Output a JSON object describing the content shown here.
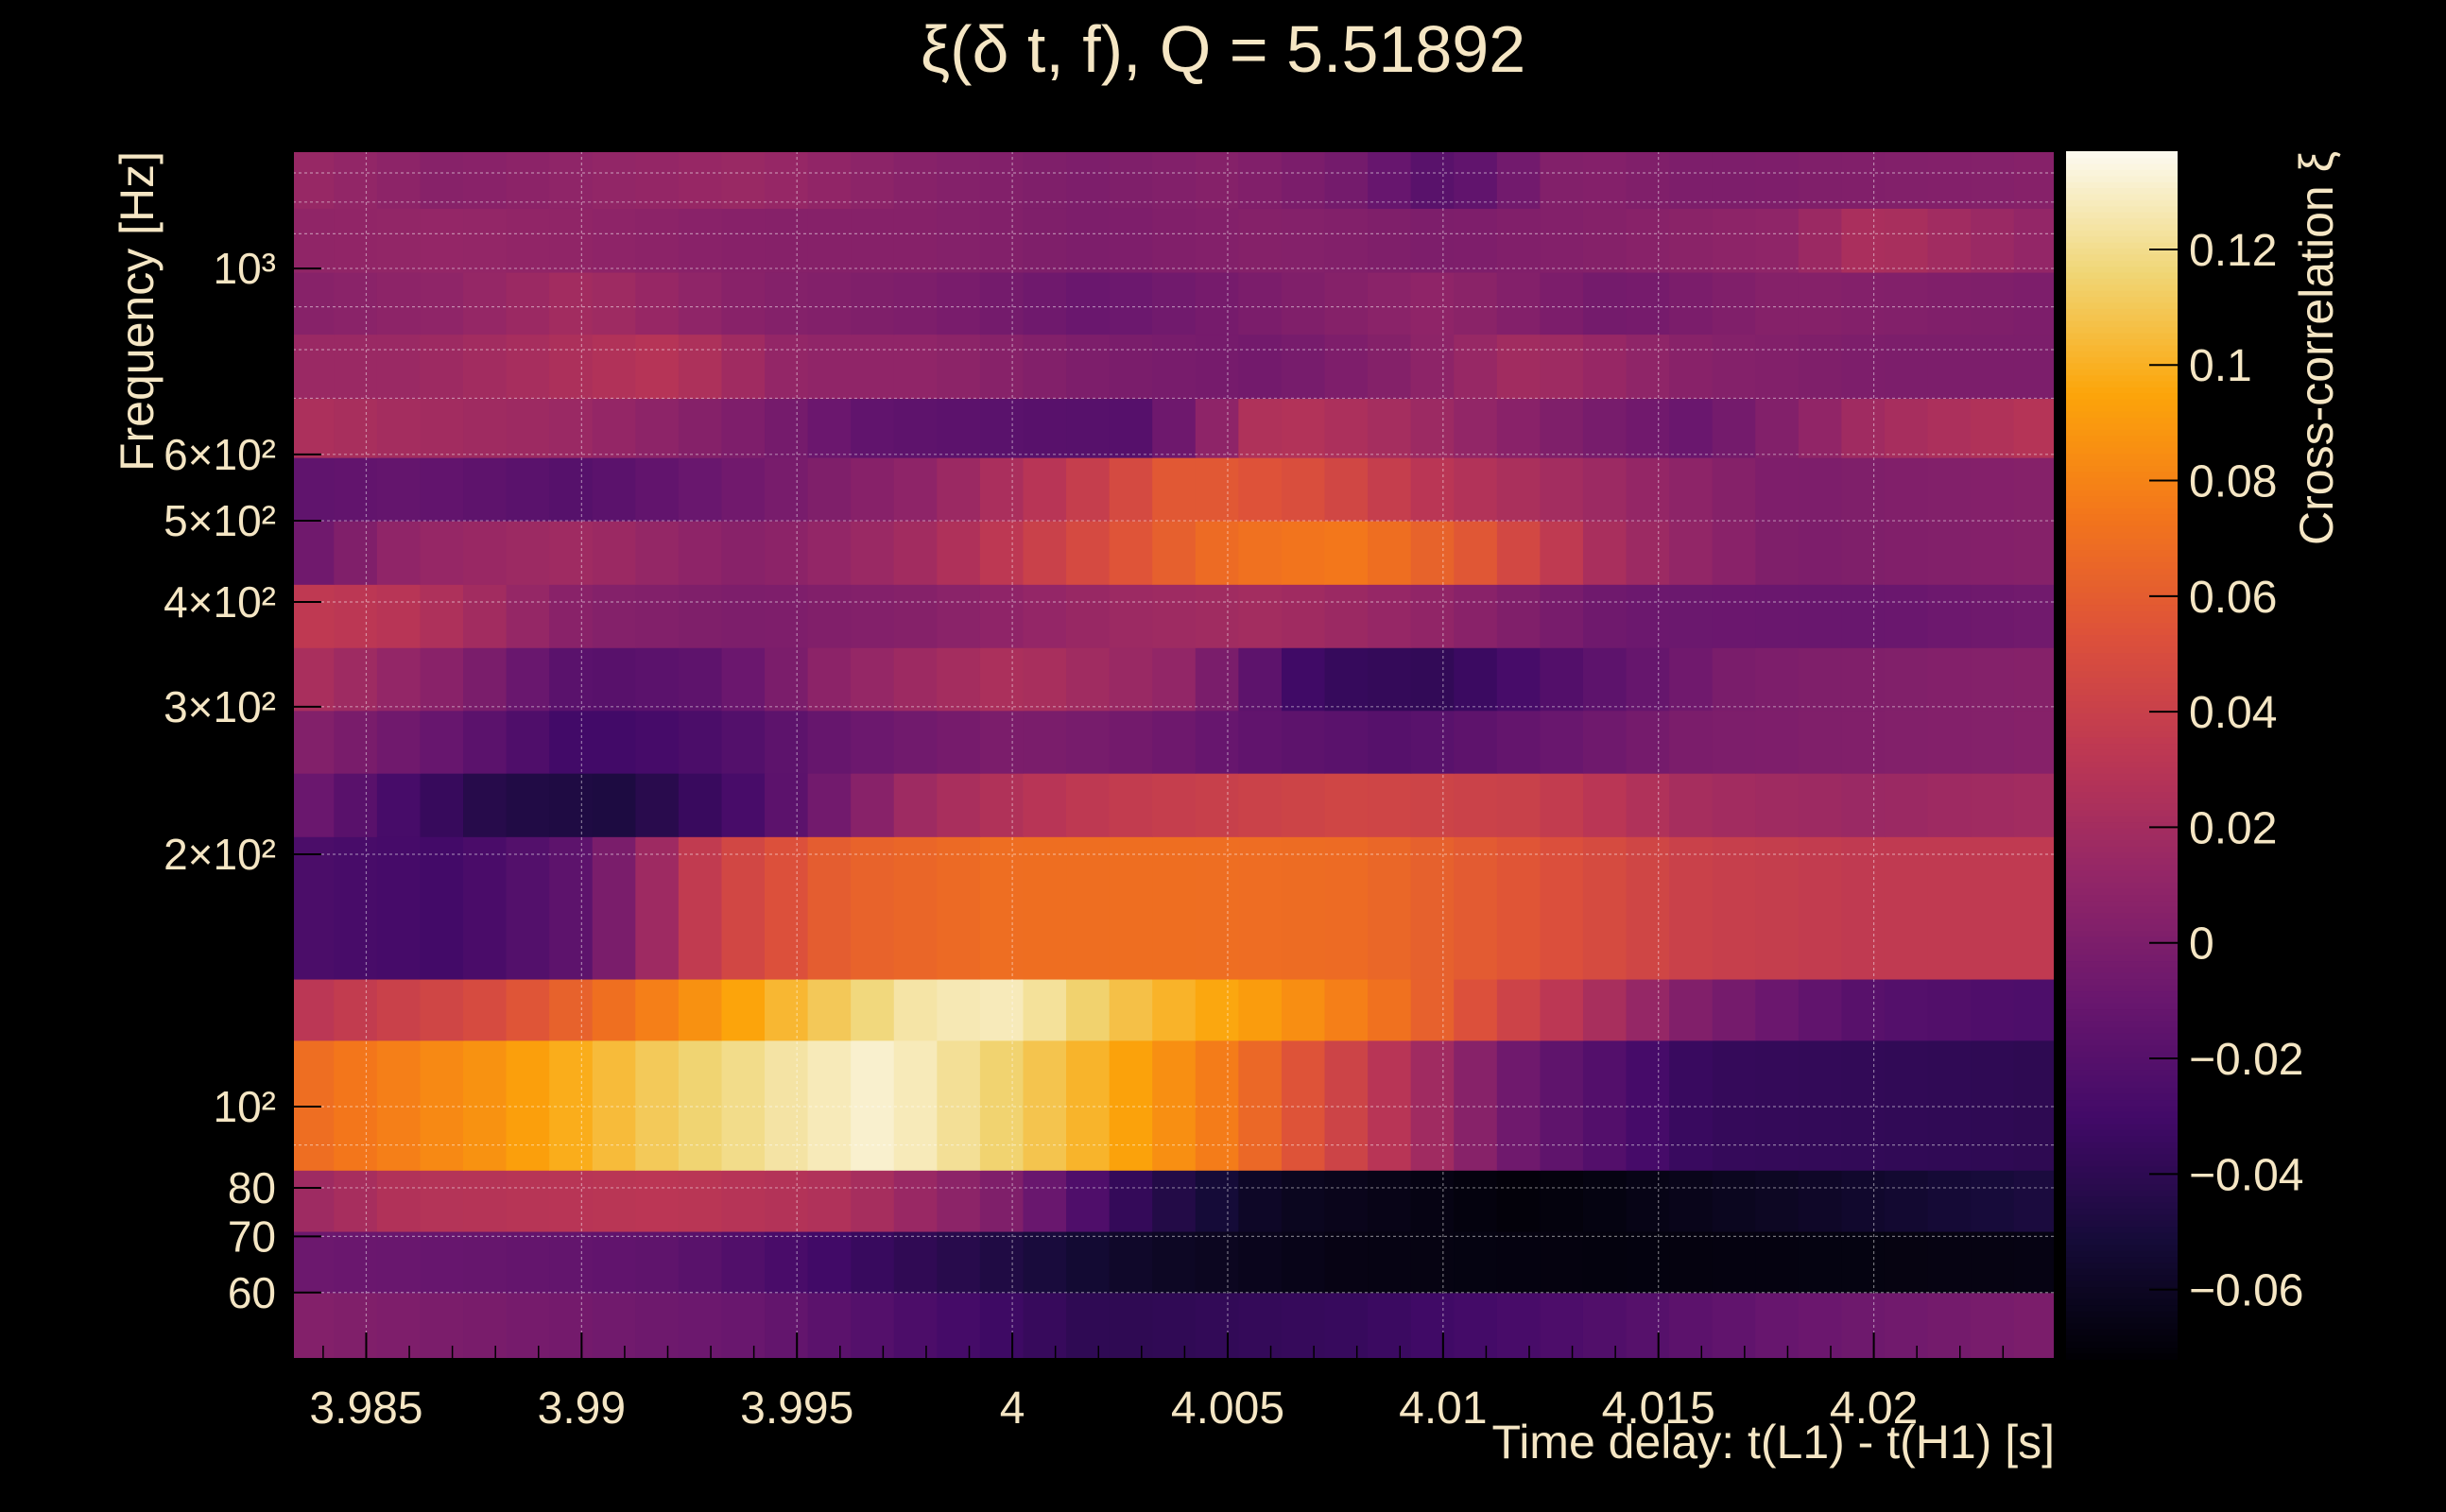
{
  "chart_data": {
    "type": "heatmap",
    "title": "ξ(δ t, f), Q = 5.51892",
    "xlabel": "Time delay: t(L1) - t(H1) [s]",
    "ylabel": "Frequency [Hz]",
    "zlabel": "Cross-correlation ξ",
    "xlim": [
      3.9833,
      4.0242
    ],
    "ylim": [
      50,
      1380
    ],
    "zlim": [
      -0.072,
      0.137
    ],
    "log_y": true,
    "grid": true,
    "colormap": "inferno",
    "x_ticks": [
      3.985,
      3.99,
      3.995,
      4.0,
      4.005,
      4.01,
      4.015,
      4.02
    ],
    "x_tick_labels": [
      "3.985",
      "3.99",
      "3.995",
      "4",
      "4.005",
      "4.01",
      "4.015",
      "4.02"
    ],
    "y_ticks": [
      60,
      70,
      80,
      100,
      200,
      300,
      400,
      500,
      600,
      1000
    ],
    "y_tick_labels": [
      "60",
      "70",
      "80",
      "10²",
      "2×10²",
      "3×10²",
      "4×10²",
      "5×10²",
      "6×10²",
      "10³"
    ],
    "z_ticks": [
      -0.06,
      -0.04,
      -0.02,
      0,
      0.02,
      0.04,
      0.06,
      0.08,
      0.1,
      0.12
    ],
    "z_tick_labels": [
      "−0.06",
      "−0.04",
      "−0.02",
      "0",
      "0.02",
      "0.04",
      "0.06",
      "0.08",
      "0.1",
      "0.12"
    ],
    "x_centers": [
      3.98375,
      3.98475,
      3.98575,
      3.98675,
      3.98775,
      3.98875,
      3.98975,
      3.99075,
      3.99175,
      3.99275,
      3.99375,
      3.99475,
      3.99575,
      3.99675,
      3.99775,
      3.99875,
      3.99975,
      4.00075,
      4.00175,
      4.00275,
      4.00375,
      4.00475,
      4.00575,
      4.00675,
      4.00775,
      4.00875,
      4.00975,
      4.01075,
      4.01175,
      4.01275,
      4.01375,
      4.01475,
      4.01575,
      4.01675,
      4.01775,
      4.01875,
      4.01975,
      4.02075,
      4.02175,
      4.02275,
      4.02375
    ],
    "y_bands": [
      [
        50,
        60
      ],
      [
        60,
        71
      ],
      [
        71,
        84
      ],
      [
        84,
        120
      ],
      [
        120,
        142
      ],
      [
        142,
        210
      ],
      [
        210,
        250
      ],
      [
        250,
        297
      ],
      [
        297,
        353
      ],
      [
        353,
        420
      ],
      [
        420,
        500
      ],
      [
        500,
        595
      ],
      [
        595,
        700
      ],
      [
        700,
        835
      ],
      [
        835,
        990
      ],
      [
        990,
        1180
      ],
      [
        1180,
        1380
      ]
    ],
    "band_values": [
      {
        "pts": [
          [
            3.9833,
            0.004
          ],
          [
            3.994,
            -0.01
          ],
          [
            3.998,
            -0.026
          ],
          [
            4.002,
            -0.04
          ],
          [
            4.008,
            -0.035
          ],
          [
            4.014,
            -0.022
          ],
          [
            4.018,
            -0.01
          ],
          [
            4.0242,
            0.0
          ]
        ]
      },
      {
        "pts": [
          [
            3.9833,
            -0.008
          ],
          [
            3.992,
            -0.015
          ],
          [
            3.998,
            -0.04
          ],
          [
            4.003,
            -0.058
          ],
          [
            4.008,
            -0.066
          ],
          [
            4.014,
            -0.068
          ],
          [
            4.0242,
            -0.066
          ]
        ]
      },
      {
        "pts": [
          [
            3.9833,
            0.015
          ],
          [
            3.986,
            0.028
          ],
          [
            3.992,
            0.032
          ],
          [
            3.996,
            0.026
          ],
          [
            4.0,
            0.0
          ],
          [
            4.003,
            -0.04
          ],
          [
            4.006,
            -0.06
          ],
          [
            4.012,
            -0.07
          ],
          [
            4.0242,
            -0.048
          ]
        ]
      },
      {
        "pts": [
          [
            3.9833,
            0.068
          ],
          [
            3.988,
            0.088
          ],
          [
            3.992,
            0.112
          ],
          [
            3.995,
            0.125
          ],
          [
            3.997,
            0.132
          ],
          [
            3.999,
            0.12
          ],
          [
            4.002,
            0.1
          ],
          [
            4.005,
            0.075
          ],
          [
            4.008,
            0.04
          ],
          [
            4.012,
            -0.01
          ],
          [
            4.016,
            -0.036
          ],
          [
            4.0242,
            -0.04
          ]
        ]
      },
      {
        "pts": [
          [
            3.9833,
            0.03
          ],
          [
            3.988,
            0.05
          ],
          [
            3.992,
            0.08
          ],
          [
            3.995,
            0.105
          ],
          [
            3.998,
            0.126
          ],
          [
            4.0,
            0.128
          ],
          [
            4.003,
            0.105
          ],
          [
            4.006,
            0.09
          ],
          [
            4.009,
            0.07
          ],
          [
            4.012,
            0.04
          ],
          [
            4.016,
            0.0
          ],
          [
            4.02,
            -0.02
          ],
          [
            4.0242,
            -0.025
          ]
        ]
      },
      {
        "pts": [
          [
            3.9833,
            -0.025
          ],
          [
            3.987,
            -0.03
          ],
          [
            3.99,
            -0.015
          ],
          [
            3.993,
            0.04
          ],
          [
            3.996,
            0.062
          ],
          [
            4.0,
            0.07
          ],
          [
            4.004,
            0.07
          ],
          [
            4.008,
            0.068
          ],
          [
            4.012,
            0.055
          ],
          [
            4.016,
            0.04
          ],
          [
            4.02,
            0.035
          ],
          [
            4.0242,
            0.035
          ]
        ]
      },
      {
        "pts": [
          [
            3.9833,
            -0.005
          ],
          [
            3.986,
            -0.03
          ],
          [
            3.988,
            -0.045
          ],
          [
            3.991,
            -0.048
          ],
          [
            3.994,
            -0.025
          ],
          [
            3.998,
            0.02
          ],
          [
            4.002,
            0.035
          ],
          [
            4.005,
            0.04
          ],
          [
            4.008,
            0.045
          ],
          [
            4.012,
            0.04
          ],
          [
            4.016,
            0.02
          ],
          [
            4.02,
            0.015
          ],
          [
            4.0242,
            0.02
          ]
        ]
      },
      {
        "pts": [
          [
            3.9833,
            0.005
          ],
          [
            3.987,
            -0.012
          ],
          [
            3.99,
            -0.032
          ],
          [
            3.993,
            -0.025
          ],
          [
            3.996,
            -0.01
          ],
          [
            4.0,
            0.0
          ],
          [
            4.003,
            -0.005
          ],
          [
            4.006,
            -0.015
          ],
          [
            4.009,
            -0.02
          ],
          [
            4.012,
            -0.012
          ],
          [
            4.016,
            0.0
          ],
          [
            4.0242,
            0.005
          ]
        ]
      },
      {
        "pts": [
          [
            3.9833,
            0.025
          ],
          [
            3.987,
            0.005
          ],
          [
            3.99,
            -0.02
          ],
          [
            3.993,
            -0.015
          ],
          [
            3.996,
            0.01
          ],
          [
            4.0,
            0.025
          ],
          [
            4.004,
            0.01
          ],
          [
            4.007,
            -0.035
          ],
          [
            4.01,
            -0.038
          ],
          [
            4.013,
            -0.02
          ],
          [
            4.017,
            0.0
          ],
          [
            4.0242,
            0.005
          ]
        ]
      },
      {
        "pts": [
          [
            3.9833,
            0.035
          ],
          [
            3.986,
            0.03
          ],
          [
            3.99,
            0.005
          ],
          [
            3.994,
            0.0
          ],
          [
            3.998,
            0.005
          ],
          [
            4.002,
            0.015
          ],
          [
            4.006,
            0.02
          ],
          [
            4.01,
            0.01
          ],
          [
            4.014,
            -0.008
          ],
          [
            4.02,
            -0.01
          ],
          [
            4.0242,
            -0.005
          ]
        ]
      },
      {
        "pts": [
          [
            3.9833,
            -0.01
          ],
          [
            3.986,
            0.012
          ],
          [
            3.99,
            0.018
          ],
          [
            3.994,
            0.005
          ],
          [
            3.998,
            0.02
          ],
          [
            4.002,
            0.05
          ],
          [
            4.005,
            0.07
          ],
          [
            4.008,
            0.075
          ],
          [
            4.011,
            0.055
          ],
          [
            4.014,
            0.02
          ],
          [
            4.018,
            0.0
          ],
          [
            4.0242,
            0.005
          ]
        ]
      },
      {
        "pts": [
          [
            3.9833,
            -0.015
          ],
          [
            3.986,
            -0.012
          ],
          [
            3.99,
            -0.02
          ],
          [
            3.994,
            -0.005
          ],
          [
            3.998,
            0.01
          ],
          [
            4.002,
            0.04
          ],
          [
            4.004,
            0.06
          ],
          [
            4.007,
            0.05
          ],
          [
            4.01,
            0.03
          ],
          [
            4.014,
            0.015
          ],
          [
            4.018,
            0.0
          ],
          [
            4.0242,
            0.005
          ]
        ]
      },
      {
        "pts": [
          [
            3.9833,
            0.025
          ],
          [
            3.986,
            0.02
          ],
          [
            3.99,
            0.015
          ],
          [
            3.994,
            0.0
          ],
          [
            3.997,
            -0.015
          ],
          [
            4.0,
            -0.018
          ],
          [
            4.003,
            -0.02
          ],
          [
            4.006,
            0.03
          ],
          [
            4.009,
            0.02
          ],
          [
            4.013,
            0.0
          ],
          [
            4.016,
            -0.01
          ],
          [
            4.02,
            0.02
          ],
          [
            4.0242,
            0.03
          ]
        ]
      },
      {
        "pts": [
          [
            3.9833,
            0.015
          ],
          [
            3.986,
            0.015
          ],
          [
            3.99,
            0.025
          ],
          [
            3.992,
            0.03
          ],
          [
            3.995,
            0.01
          ],
          [
            3.998,
            0.01
          ],
          [
            4.002,
            0.0
          ],
          [
            4.006,
            -0.005
          ],
          [
            4.009,
            0.005
          ],
          [
            4.012,
            0.02
          ],
          [
            4.016,
            0.005
          ],
          [
            4.02,
            0.0
          ],
          [
            4.0242,
            0.0
          ]
        ]
      },
      {
        "pts": [
          [
            3.9833,
            0.005
          ],
          [
            3.987,
            0.01
          ],
          [
            3.99,
            0.02
          ],
          [
            3.994,
            0.005
          ],
          [
            3.998,
            0.0
          ],
          [
            4.002,
            -0.01
          ],
          [
            4.006,
            0.0
          ],
          [
            4.01,
            0.01
          ],
          [
            4.014,
            -0.005
          ],
          [
            4.018,
            0.005
          ],
          [
            4.0242,
            0.0
          ]
        ]
      },
      {
        "pts": [
          [
            3.9833,
            0.01
          ],
          [
            3.987,
            0.012
          ],
          [
            3.99,
            0.01
          ],
          [
            3.994,
            0.005
          ],
          [
            3.998,
            0.005
          ],
          [
            4.002,
            0.0
          ],
          [
            4.006,
            0.005
          ],
          [
            4.01,
            0.0
          ],
          [
            4.014,
            0.005
          ],
          [
            4.018,
            0.01
          ],
          [
            4.02,
            0.025
          ],
          [
            4.0242,
            0.01
          ]
        ]
      },
      {
        "pts": [
          [
            3.9833,
            0.015
          ],
          [
            3.987,
            0.005
          ],
          [
            3.99,
            0.01
          ],
          [
            3.994,
            0.015
          ],
          [
            3.998,
            0.005
          ],
          [
            4.002,
            0.0
          ],
          [
            4.005,
            0.005
          ],
          [
            4.008,
            -0.005
          ],
          [
            4.01,
            -0.02
          ],
          [
            4.013,
            0.005
          ],
          [
            4.016,
            0.0
          ],
          [
            4.0242,
            0.005
          ]
        ]
      }
    ]
  }
}
